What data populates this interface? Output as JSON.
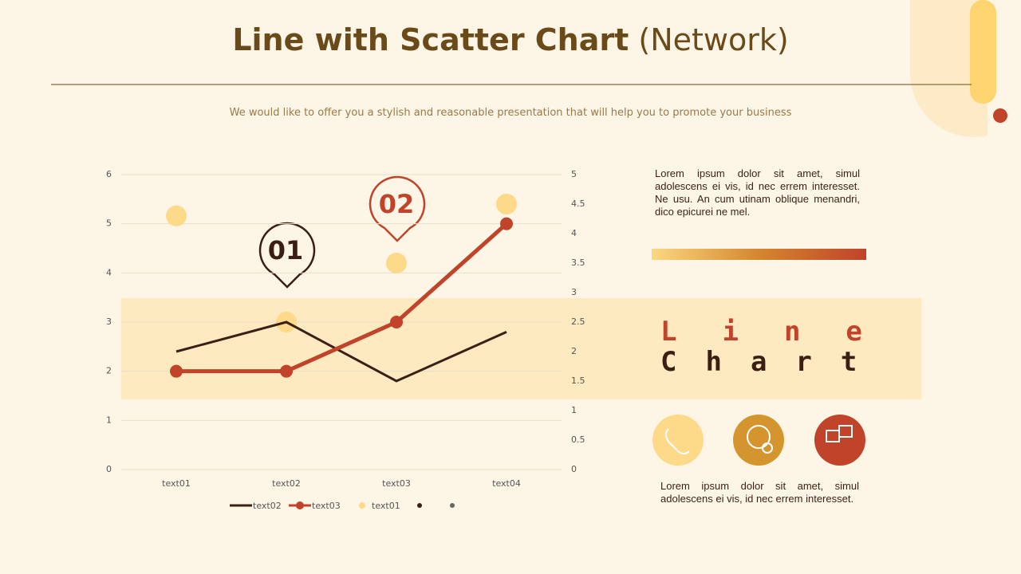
{
  "header": {
    "title": "Line with Scatter Chart",
    "title_suffix": "(Network)",
    "subtitle": "We would like to offer you a stylish and reasonable presentation that will help you to promote your business"
  },
  "chart_data": {
    "type": "line",
    "categories": [
      "text01",
      "text02",
      "text03",
      "text04"
    ],
    "series": [
      {
        "name": "text02",
        "color": "#3b1f14",
        "values": [
          2.4,
          3.0,
          1.8,
          2.8
        ]
      },
      {
        "name": "text03",
        "color": "#c0432a",
        "values": [
          2.0,
          2.0,
          3.0,
          5.0
        ],
        "markers": true
      },
      {
        "name": "text01",
        "color": "#fdd98a",
        "values": [
          4.3,
          2.5,
          3.5,
          4.5
        ],
        "axis": "y2",
        "type": "scatter"
      }
    ],
    "ylim": [
      0,
      6
    ],
    "yticks": [
      0,
      1,
      2,
      3,
      4,
      5,
      6
    ],
    "y2lim": [
      0,
      5
    ],
    "y2ticks": [
      0,
      0.5,
      1,
      1.5,
      2,
      2.5,
      3,
      3.5,
      4,
      4.5,
      5
    ],
    "grid": true,
    "legend": "bottom"
  },
  "callouts": {
    "first": "01",
    "second": "02"
  },
  "side": {
    "paragraph1": "Lorem ipsum dolor sit amet, simul adolescens ei vis, id nec errem interesset. Ne usu. An cum utinam oblique menandri, dico epicurei ne mel.",
    "word1": "Line",
    "word2": "Chart",
    "paragraph2": "Lorem ipsum dolor sit amet, simul adolescens ei vis, id nec errem interesset."
  }
}
